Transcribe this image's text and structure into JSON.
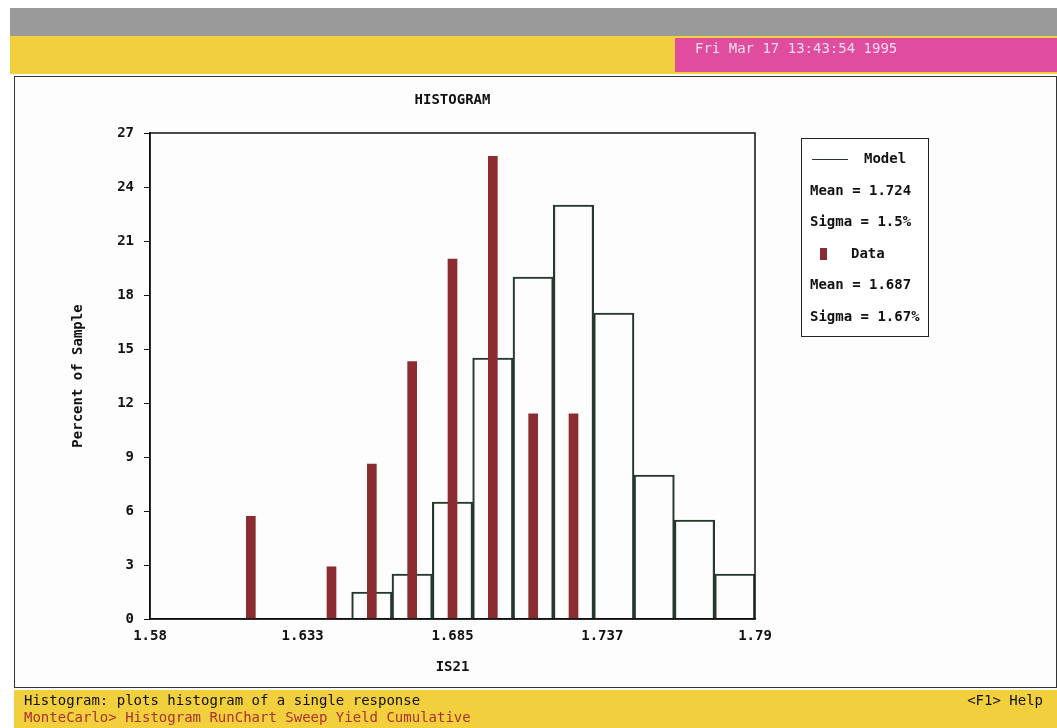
{
  "chart_data": {
    "type": "bar",
    "title": "HISTOGRAM",
    "xlabel": "IS21",
    "ylabel": "Percent of Sample",
    "xlim": [
      1.58,
      1.79
    ],
    "xticks": [
      1.58,
      1.633,
      1.685,
      1.737,
      1.79
    ],
    "ylim": [
      0,
      27
    ],
    "yticks": [
      0,
      3,
      6,
      9,
      12,
      15,
      18,
      21,
      24,
      27
    ],
    "grid": false,
    "legend": "right",
    "series": [
      {
        "name": "Model",
        "color": "#24392c",
        "x": [
          1.657,
          1.671,
          1.685,
          1.699,
          1.713,
          1.727,
          1.741,
          1.755,
          1.769,
          1.783
        ],
        "values": [
          1.5,
          2.5,
          6.5,
          14.5,
          19,
          23,
          17,
          8,
          5.5,
          2.5
        ]
      },
      {
        "name": "Data",
        "color": "#8b2c31",
        "x": [
          1.615,
          1.643,
          1.657,
          1.671,
          1.685,
          1.699,
          1.713,
          1.727
        ],
        "values": [
          5.7,
          2.9,
          8.6,
          14.3,
          20,
          25.7,
          11.4,
          11.4
        ]
      }
    ],
    "annotations": [
      "Mean = 1.724",
      "Sigma = 1.5%",
      "Mean = 1.687",
      "Sigma = 1.67%",
      "Fri Mar 17 13:43:54 1995",
      "Histogram: plots histogram of a single response",
      "<F1> Help",
      "MonteCarlo> Histogram RunChart Sweep Yield Cumulative"
    ]
  }
}
